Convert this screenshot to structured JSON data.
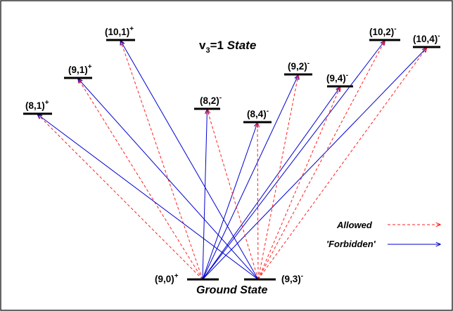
{
  "title": {
    "main": "v",
    "sub": "3",
    "rest": "=1 ",
    "italic": "State"
  },
  "ground_state_label": "Ground State",
  "colors": {
    "allowed": "#ff2020",
    "forbidden": "#0000d0",
    "level": "#000000"
  },
  "legend": [
    {
      "key": "allowed",
      "label": "Allowed",
      "style": "dashed"
    },
    {
      "key": "forbidden",
      "label": "'Forbidden'",
      "style": "solid"
    }
  ],
  "lower_levels": [
    {
      "id": "g90",
      "label": "(9,0)",
      "sign": "+"
    },
    {
      "id": "g93",
      "label": "(9,3)",
      "sign": "-"
    }
  ],
  "upper_levels": [
    {
      "id": "u81",
      "label": "(8,1)",
      "sign": "+"
    },
    {
      "id": "u91",
      "label": "(9,1)",
      "sign": "+"
    },
    {
      "id": "u101",
      "label": "(10,1)",
      "sign": "+"
    },
    {
      "id": "u82",
      "label": "(8,2)",
      "sign": "-"
    },
    {
      "id": "u84",
      "label": "(8,4)",
      "sign": "-"
    },
    {
      "id": "u92",
      "label": "(9,2)",
      "sign": "-"
    },
    {
      "id": "u94",
      "label": "(9,4)",
      "sign": "-"
    },
    {
      "id": "u102",
      "label": "(10,2)",
      "sign": "-"
    },
    {
      "id": "u104",
      "label": "(10,4)",
      "sign": "-"
    }
  ],
  "transitions": [
    {
      "from": "g90",
      "to": "u81",
      "type": "allowed"
    },
    {
      "from": "g90",
      "to": "u91",
      "type": "allowed"
    },
    {
      "from": "g90",
      "to": "u101",
      "type": "allowed"
    },
    {
      "from": "g90",
      "to": "u82",
      "type": "forbidden"
    },
    {
      "from": "g90",
      "to": "u84",
      "type": "forbidden"
    },
    {
      "from": "g90",
      "to": "u92",
      "type": "forbidden"
    },
    {
      "from": "g90",
      "to": "u94",
      "type": "forbidden"
    },
    {
      "from": "g90",
      "to": "u102",
      "type": "forbidden"
    },
    {
      "from": "g90",
      "to": "u104",
      "type": "forbidden"
    },
    {
      "from": "g93",
      "to": "u81",
      "type": "forbidden"
    },
    {
      "from": "g93",
      "to": "u91",
      "type": "forbidden"
    },
    {
      "from": "g93",
      "to": "u101",
      "type": "forbidden"
    },
    {
      "from": "g93",
      "to": "u82",
      "type": "allowed"
    },
    {
      "from": "g93",
      "to": "u84",
      "type": "allowed"
    },
    {
      "from": "g93",
      "to": "u92",
      "type": "allowed"
    },
    {
      "from": "g93",
      "to": "u94",
      "type": "allowed"
    },
    {
      "from": "g93",
      "to": "u102",
      "type": "allowed"
    },
    {
      "from": "g93",
      "to": "u104",
      "type": "allowed"
    }
  ]
}
